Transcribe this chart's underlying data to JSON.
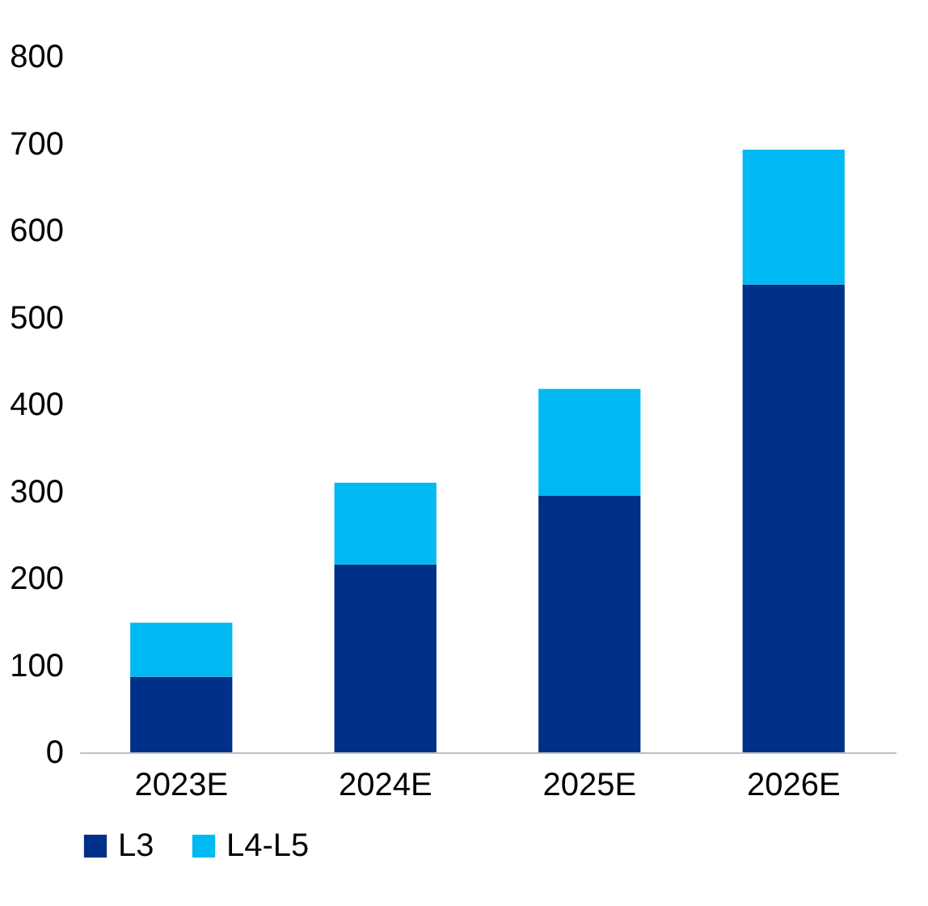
{
  "chart_data": {
    "type": "bar",
    "stacked": true,
    "categories": [
      "2023E",
      "2024E",
      "2025E",
      "2026E"
    ],
    "series": [
      {
        "name": "L3",
        "color": "#003087",
        "values": [
          87,
          216,
          295,
          538
        ]
      },
      {
        "name": "L4-L5",
        "color": "#00b9f2",
        "values": [
          62,
          94,
          123,
          155
        ]
      }
    ],
    "ylim": [
      0,
      800
    ],
    "yticks": [
      0,
      100,
      200,
      300,
      400,
      500,
      600,
      700,
      800
    ],
    "grid": false,
    "legend": "bottom"
  }
}
